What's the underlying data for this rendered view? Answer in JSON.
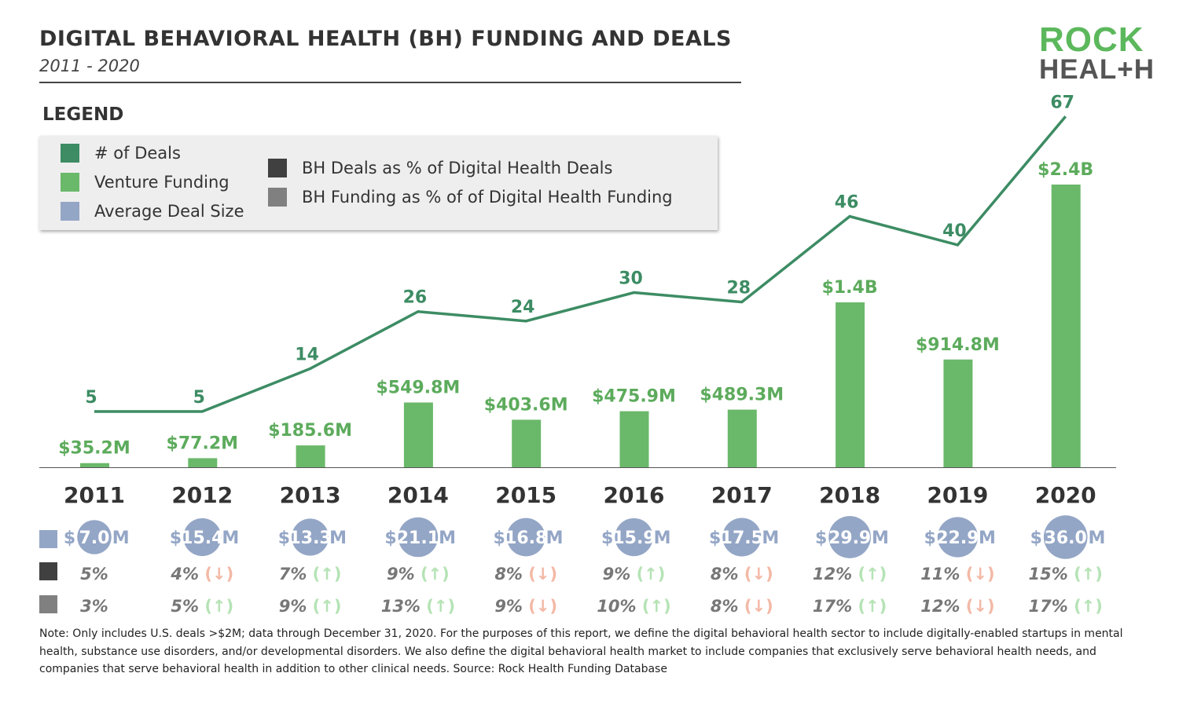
{
  "header": {
    "title": "DIGITAL BEHAVIORAL HEALTH (BH) FUNDING AND DEALS",
    "subtitle": "2011 - 2020",
    "logo_top": "ROCK",
    "logo_bottom": "HEAL+H"
  },
  "legend": {
    "title": "LEGEND",
    "items": [
      {
        "label": "# of Deals",
        "color": "#3d8c64"
      },
      {
        "label": "Venture Funding",
        "color": "#6ab86a"
      },
      {
        "label": "Average Deal Size",
        "color": "#94a6c6"
      },
      {
        "label": "BH Deals as % of Digital Health Deals",
        "color": "#404040"
      },
      {
        "label": "BH Funding as % of of Digital Health Funding",
        "color": "#808080"
      }
    ]
  },
  "chart_data": {
    "type": "bar+line",
    "categories": [
      "2011",
      "2012",
      "2013",
      "2014",
      "2015",
      "2016",
      "2017",
      "2018",
      "2019",
      "2020"
    ],
    "series": [
      {
        "name": "Venture Funding",
        "type": "bar",
        "unit": "$M",
        "values": [
          35.2,
          77.2,
          185.6,
          549.8,
          403.6,
          475.9,
          489.3,
          1400,
          914.8,
          2400
        ],
        "labels": [
          "$35.2M",
          "$77.2M",
          "$185.6M",
          "$549.8M",
          "$403.6M",
          "$475.9M",
          "$489.3M",
          "$1.4B",
          "$914.8M",
          "$2.4B"
        ]
      },
      {
        "name": "# of Deals",
        "type": "line",
        "values": [
          5,
          5,
          14,
          26,
          24,
          30,
          28,
          46,
          40,
          67
        ]
      },
      {
        "name": "Average Deal Size",
        "unit": "$M",
        "values": [
          7.0,
          15.4,
          13.3,
          21.1,
          16.8,
          15.9,
          17.5,
          29.9,
          22.9,
          36.0
        ]
      },
      {
        "name": "BH Deals as % of Digital Health Deals",
        "values": [
          "5%",
          "4%",
          "7%",
          "9%",
          "8%",
          "9%",
          "8%",
          "12%",
          "11%",
          "15%"
        ],
        "trend": [
          "",
          "down",
          "up",
          "up",
          "down",
          "up",
          "down",
          "up",
          "down",
          "up"
        ]
      },
      {
        "name": "BH Funding as % of of Digital Health Funding",
        "values": [
          "3%",
          "5%",
          "9%",
          "13%",
          "9%",
          "10%",
          "8%",
          "17%",
          "12%",
          "17%"
        ],
        "trend": [
          "",
          "up",
          "up",
          "up",
          "down",
          "up",
          "down",
          "up",
          "down",
          "up"
        ]
      }
    ]
  },
  "colors": {
    "up": "#b5e3b5",
    "down": "#f3b9a6",
    "pct_text": "#777"
  },
  "note": "Note: Only includes U.S. deals >$2M; data through December 31, 2020. For the purposes of this report, we define the digital behavioral health sector to include digitally-enabled startups in mental health, substance use disorders, and/or developmental disorders. We also define the digital behavioral health market to include companies that exclusively serve behavioral health needs, and companies that serve behavioral health in addition to other clinical needs. Source: Rock Health Funding Database"
}
